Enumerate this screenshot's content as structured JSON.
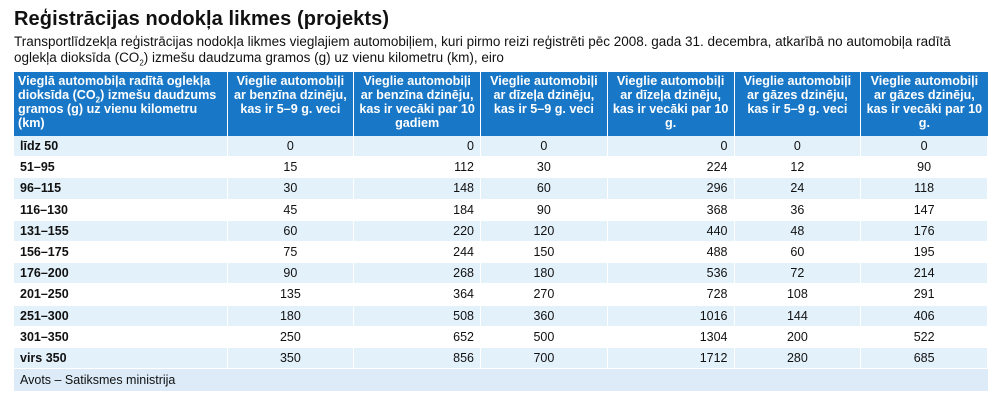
{
  "title": "Reģistrācijas nodokļa likmes (projekts)",
  "subtitle": "Transportlīdzekļa reģistrācijas nodokļa likmes vieglajiem automobiļiem, kuri pirmo reizi reģistrēti pēc 2008. gada 31. decembra, atkarībā no automobiļa radītā oglekļa dioksīda (CO2) izmešu daudzuma gramos (g) uz vienu kilometru (km), eiro",
  "table": {
    "header_first": "Vieglā automobiļa radītā oglekļa dioksīda (CO2) izmešu daudzums gramos (g) uz vienu kilometru (km)",
    "headers": [
      "Vieglie automobiļi ar benzīna dzinēju, kas ir 5–9 g. veci",
      "Vieglie automobiļi ar benzīna dzinēju, kas ir vecāki par 10 gadiem",
      "Vieglie automobiļi ar dīzeļa dzinēju, kas ir 5–9 g. veci",
      "Vieglie automobiļi ar dīzeļa dzinēju, kas ir vecāki par 10 g.",
      "Vieglie automobiļi ar gāzes dzinēju, kas ir 5–9 g. veci",
      "Vieglie automobiļi ar gāzes dzinēju, kas ir vecāki par 10 g."
    ],
    "rows": [
      {
        "range": "līdz 50",
        "values": [
          "0",
          "0",
          "0",
          "0",
          "0",
          "0"
        ]
      },
      {
        "range": "51–95",
        "values": [
          "15",
          "112",
          "30",
          "224",
          "12",
          "90"
        ]
      },
      {
        "range": "96–115",
        "values": [
          "30",
          "148",
          "60",
          "296",
          "24",
          "118"
        ]
      },
      {
        "range": "116–130",
        "values": [
          "45",
          "184",
          "90",
          "368",
          "36",
          "147"
        ]
      },
      {
        "range": "131–155",
        "values": [
          "60",
          "220",
          "120",
          "440",
          "48",
          "176"
        ]
      },
      {
        "range": "156–175",
        "values": [
          "75",
          "244",
          "150",
          "488",
          "60",
          "195"
        ]
      },
      {
        "range": "176–200",
        "values": [
          "90",
          "268",
          "180",
          "536",
          "72",
          "214"
        ]
      },
      {
        "range": "201–250",
        "values": [
          "135",
          "364",
          "270",
          "728",
          "108",
          "291"
        ]
      },
      {
        "range": "251–300",
        "values": [
          "180",
          "508",
          "360",
          "1016",
          "144",
          "406"
        ]
      },
      {
        "range": "301–350",
        "values": [
          "250",
          "652",
          "500",
          "1304",
          "200",
          "522"
        ]
      },
      {
        "range": "virs 350",
        "values": [
          "350",
          "856",
          "700",
          "1712",
          "280",
          "685"
        ]
      }
    ]
  },
  "source": "Avots – Satiksmes ministrija"
}
